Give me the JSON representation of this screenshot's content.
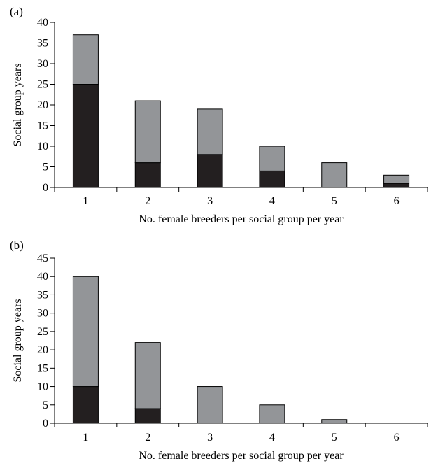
{
  "chart_data": [
    {
      "type": "bar",
      "stacked": true,
      "panel_label": "(a)",
      "categories": [
        "1",
        "2",
        "3",
        "4",
        "5",
        "6"
      ],
      "series": [
        {
          "values": [
            25,
            6,
            8,
            4,
            0,
            1
          ],
          "color": "#231f20"
        },
        {
          "values": [
            12,
            15,
            11,
            6,
            6,
            2
          ],
          "color": "#939598"
        }
      ],
      "totals": [
        37,
        21,
        19,
        10,
        6,
        3
      ],
      "xlabel": "No. female breeders per social group per year",
      "ylabel": "Social group years",
      "ylim": [
        0,
        40
      ],
      "yticks": [
        0,
        5,
        10,
        15,
        20,
        25,
        30,
        35,
        40
      ],
      "grid": false,
      "legend": "none"
    },
    {
      "type": "bar",
      "stacked": true,
      "panel_label": "(b)",
      "categories": [
        "1",
        "2",
        "3",
        "4",
        "5",
        "6"
      ],
      "series": [
        {
          "values": [
            10,
            4,
            0,
            0,
            0,
            0
          ],
          "color": "#231f20"
        },
        {
          "values": [
            30,
            18,
            10,
            5,
            1,
            0
          ],
          "color": "#939598"
        }
      ],
      "totals": [
        40,
        22,
        10,
        5,
        1,
        0
      ],
      "xlabel": "No. female breeders per social group per year",
      "ylabel": "Social group years",
      "ylim": [
        0,
        45
      ],
      "yticks": [
        0,
        5,
        10,
        15,
        20,
        25,
        30,
        35,
        40,
        45
      ],
      "grid": false,
      "legend": "none"
    }
  ]
}
